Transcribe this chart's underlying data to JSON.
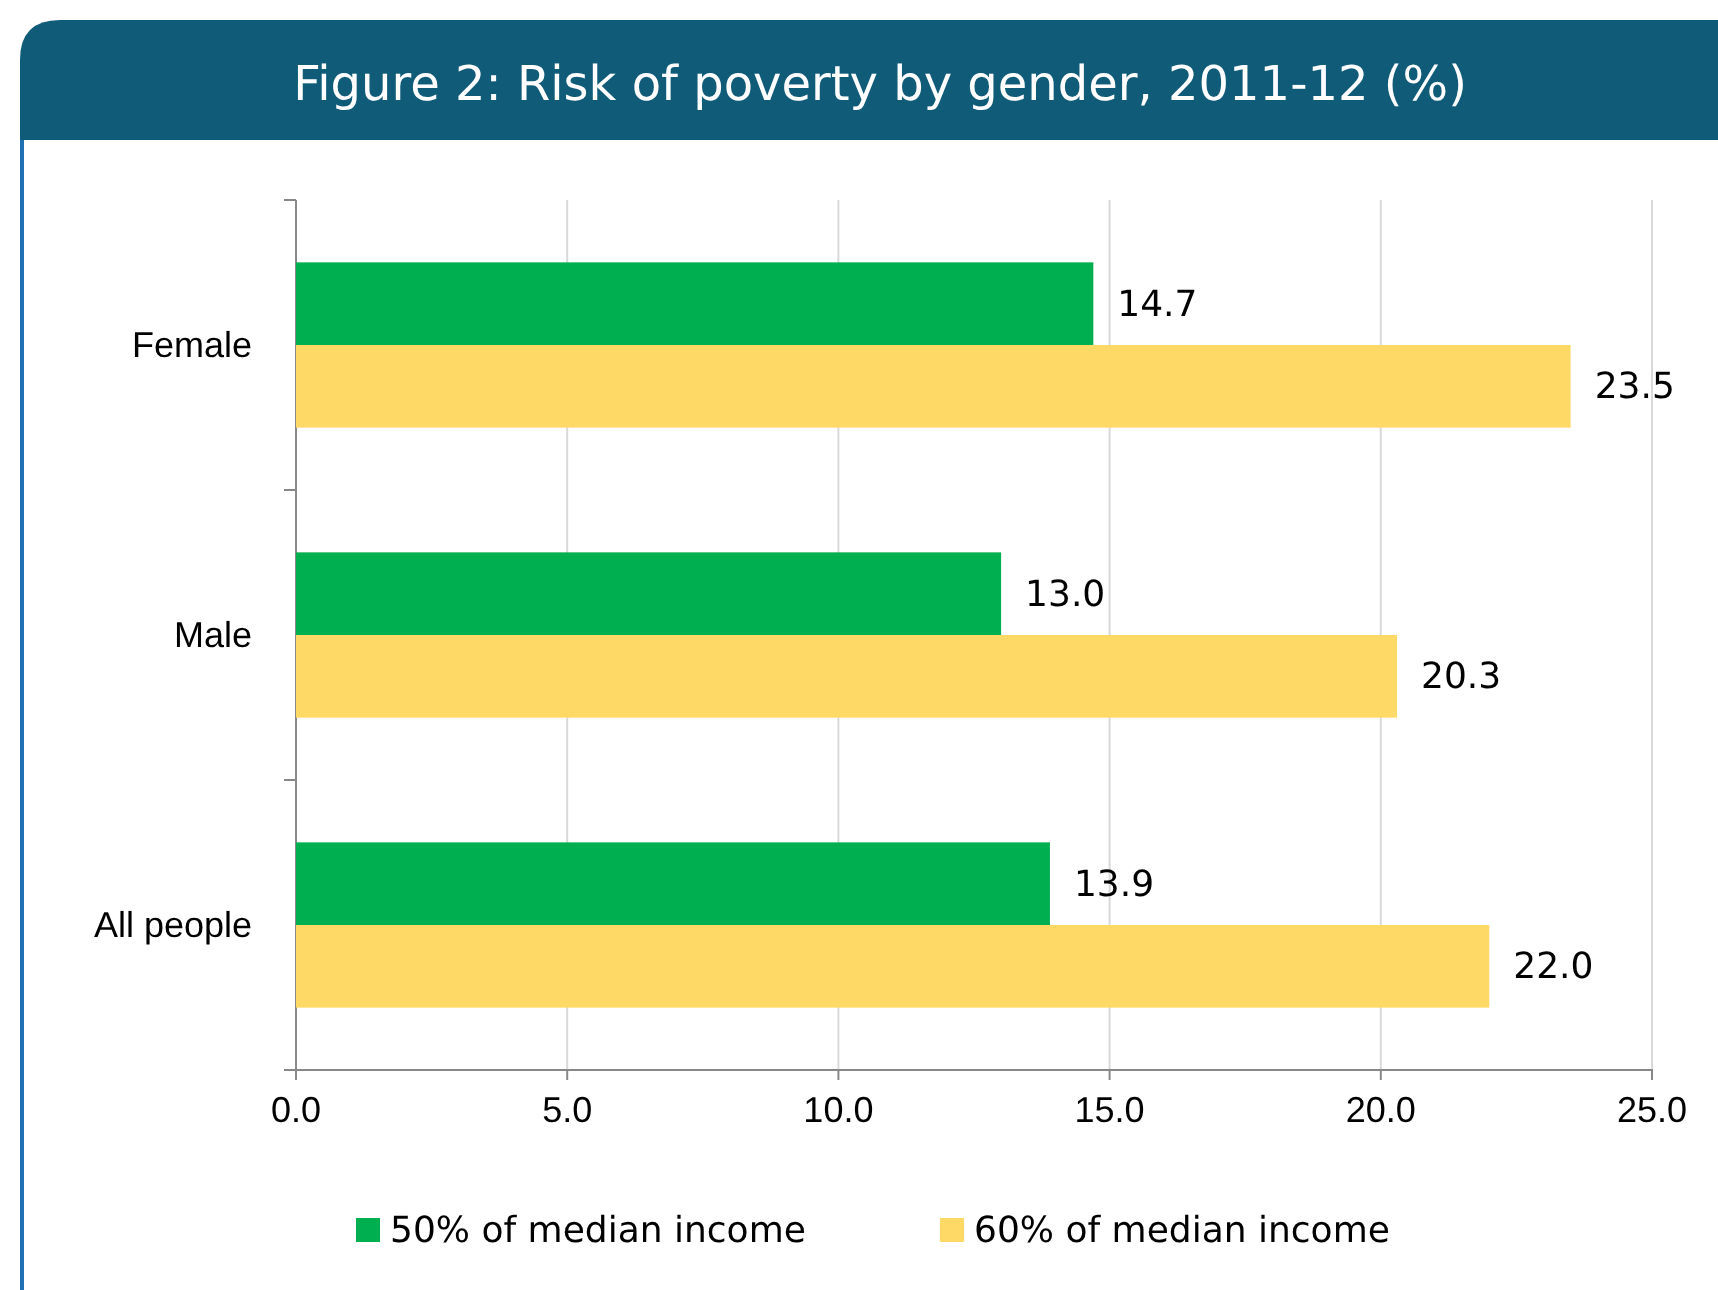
{
  "chart_data": {
    "type": "bar",
    "orientation": "horizontal",
    "title": "Figure 2: Risk of poverty by gender, 2011-12 (%)",
    "categories": [
      "Female",
      "Male",
      "All people"
    ],
    "series": [
      {
        "name": "50% of median income",
        "color": "#00b050",
        "values": [
          14.7,
          13.0,
          13.9
        ],
        "value_labels": [
          "14.7",
          "13.0",
          "13.9"
        ]
      },
      {
        "name": "60% of median income",
        "color": "#ffd966",
        "values": [
          23.5,
          20.3,
          22.0
        ],
        "value_labels": [
          "23.5",
          "20.3",
          "22.0"
        ]
      }
    ],
    "xlim": [
      0,
      25
    ],
    "xticks": [
      {
        "value": 0,
        "label": "0.0"
      },
      {
        "value": 5,
        "label": "5.0"
      },
      {
        "value": 10,
        "label": "10.0"
      },
      {
        "value": 15,
        "label": "15.0"
      },
      {
        "value": 20,
        "label": "20.0"
      },
      {
        "value": 25,
        "label": "25.0"
      }
    ],
    "grid": "x",
    "legend": "bottom"
  }
}
